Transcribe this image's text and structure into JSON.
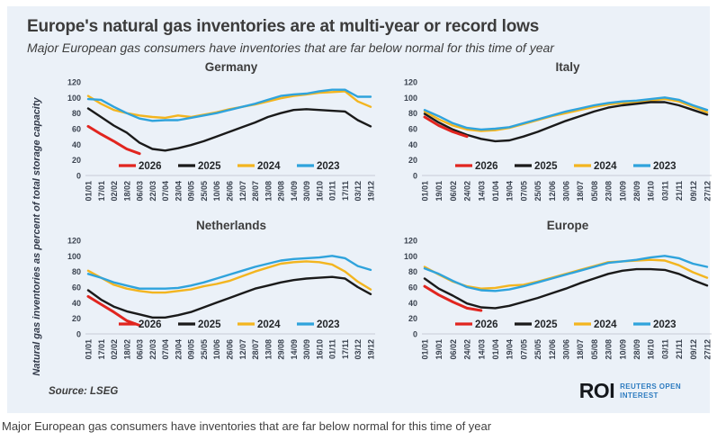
{
  "header": {
    "title": "Europe's natural gas inventories are at multi-year or record lows",
    "subtitle": "Major European gas consumers have inventories that are far below normal for this time of year"
  },
  "ylabel": "Natural gas inventories as percent of total storage capacity",
  "footer": {
    "source_text": "Source:  LSEG",
    "logo_text": "ROI",
    "logo_line1": "REUTERS OPEN",
    "logo_line2": "INTEREST"
  },
  "caption": "Major European gas consumers have inventories that are far below normal for this time of year",
  "colors": {
    "2026": "#e1251f",
    "2025": "#1a1a1a",
    "2024": "#f3b51f",
    "2023": "#2fa3dc",
    "card_background": "#ebf1f8",
    "axis_line": "#c7ccd6",
    "logo_blue": "#2e7cc0"
  },
  "legend_order": [
    "2026",
    "2025",
    "2024",
    "2023"
  ],
  "chart_data": [
    {
      "type": "line",
      "title": "Germany",
      "ylim": [
        0,
        120
      ],
      "yticks": [
        0,
        20,
        40,
        60,
        80,
        100,
        120
      ],
      "legend_position": "bottom-center-inside",
      "grid": false,
      "categories": [
        "01/01",
        "17/01",
        "02/02",
        "18/02",
        "06/03",
        "22/03",
        "07/04",
        "23/04",
        "09/05",
        "25/05",
        "10/06",
        "26/06",
        "12/07",
        "28/07",
        "13/08",
        "29/08",
        "14/09",
        "30/09",
        "16/10",
        "01/11",
        "17/11",
        "03/12",
        "19/12"
      ],
      "series": [
        {
          "name": "2026",
          "values": [
            63,
            53,
            44,
            34,
            28
          ]
        },
        {
          "name": "2025",
          "values": [
            86,
            75,
            64,
            55,
            42,
            34,
            32,
            35,
            39,
            44,
            50,
            56,
            62,
            68,
            75,
            80,
            84,
            85,
            84,
            83,
            82,
            71,
            63
          ]
        },
        {
          "name": "2024",
          "values": [
            102,
            92,
            84,
            80,
            77,
            75,
            74,
            77,
            75,
            78,
            81,
            85,
            88,
            91,
            95,
            99,
            102,
            104,
            106,
            107,
            108,
            95,
            88
          ]
        },
        {
          "name": "2023",
          "values": [
            98,
            97,
            88,
            80,
            73,
            70,
            71,
            71,
            74,
            77,
            80,
            84,
            88,
            92,
            97,
            102,
            104,
            105,
            108,
            110,
            110,
            101,
            101
          ]
        }
      ]
    },
    {
      "type": "line",
      "title": "Italy",
      "ylim": [
        0,
        120
      ],
      "yticks": [
        0,
        20,
        40,
        60,
        80,
        100,
        120
      ],
      "legend_position": "bottom-center-inside",
      "grid": false,
      "categories": [
        "01/01",
        "19/01",
        "06/02",
        "24/02",
        "14/03",
        "01/04",
        "19/04",
        "07/05",
        "25/05",
        "12/06",
        "30/06",
        "18/07",
        "05/08",
        "23/08",
        "10/09",
        "28/09",
        "16/10",
        "03/11",
        "21/11",
        "09/12",
        "27/12"
      ],
      "series": [
        {
          "name": "2026",
          "values": [
            75,
            64,
            56,
            50
          ]
        },
        {
          "name": "2025",
          "values": [
            79,
            68,
            59,
            52,
            47,
            44,
            45,
            50,
            56,
            63,
            70,
            76,
            82,
            87,
            90,
            92,
            94,
            94,
            90,
            84,
            78
          ]
        },
        {
          "name": "2024",
          "values": [
            82,
            72,
            64,
            59,
            57,
            58,
            61,
            66,
            71,
            76,
            80,
            84,
            88,
            91,
            93,
            94,
            96,
            98,
            95,
            88,
            81
          ]
        },
        {
          "name": "2023",
          "values": [
            84,
            76,
            67,
            61,
            59,
            60,
            62,
            67,
            72,
            77,
            82,
            86,
            90,
            93,
            95,
            96,
            98,
            100,
            97,
            90,
            84
          ]
        }
      ]
    },
    {
      "type": "line",
      "title": "Netherlands",
      "ylim": [
        0,
        120
      ],
      "yticks": [
        0,
        20,
        40,
        60,
        80,
        100,
        120
      ],
      "legend_position": "bottom-center-inside",
      "grid": false,
      "categories": [
        "01/01",
        "17/01",
        "02/02",
        "18/02",
        "06/03",
        "22/03",
        "07/04",
        "23/04",
        "09/05",
        "25/05",
        "10/06",
        "26/06",
        "12/07",
        "28/07",
        "13/08",
        "29/08",
        "14/09",
        "30/09",
        "16/10",
        "01/11",
        "17/11",
        "03/12",
        "19/12"
      ],
      "series": [
        {
          "name": "2026",
          "values": [
            48,
            38,
            28,
            17,
            11
          ]
        },
        {
          "name": "2025",
          "values": [
            56,
            44,
            35,
            29,
            25,
            21,
            21,
            24,
            28,
            34,
            40,
            46,
            52,
            58,
            62,
            66,
            69,
            71,
            72,
            73,
            71,
            60,
            51
          ]
        },
        {
          "name": "2024",
          "values": [
            81,
            72,
            63,
            58,
            55,
            53,
            53,
            55,
            57,
            61,
            64,
            68,
            74,
            80,
            85,
            90,
            92,
            93,
            92,
            89,
            80,
            67,
            57
          ]
        },
        {
          "name": "2023",
          "values": [
            77,
            72,
            66,
            62,
            58,
            58,
            58,
            59,
            62,
            66,
            71,
            76,
            81,
            86,
            90,
            94,
            96,
            97,
            98,
            100,
            97,
            87,
            82
          ]
        }
      ]
    },
    {
      "type": "line",
      "title": "Europe",
      "ylim": [
        0,
        120
      ],
      "yticks": [
        0,
        20,
        40,
        60,
        80,
        100,
        120
      ],
      "legend_position": "bottom-center-inside",
      "grid": false,
      "categories": [
        "01/01",
        "19/01",
        "06/02",
        "24/02",
        "14/03",
        "01/04",
        "19/04",
        "07/05",
        "25/05",
        "12/06",
        "30/06",
        "18/07",
        "05/08",
        "23/08",
        "10/09",
        "28/09",
        "16/10",
        "03/11",
        "21/11",
        "09/12",
        "27/12"
      ],
      "series": [
        {
          "name": "2026",
          "values": [
            61,
            50,
            41,
            33,
            30
          ]
        },
        {
          "name": "2025",
          "values": [
            71,
            58,
            49,
            39,
            34,
            33,
            36,
            41,
            46,
            52,
            58,
            65,
            71,
            77,
            81,
            83,
            83,
            82,
            77,
            69,
            62
          ]
        },
        {
          "name": "2024",
          "values": [
            86,
            76,
            67,
            61,
            58,
            59,
            62,
            63,
            67,
            72,
            77,
            82,
            87,
            92,
            93,
            94,
            95,
            94,
            88,
            79,
            72
          ]
        },
        {
          "name": "2023",
          "values": [
            84,
            77,
            68,
            60,
            56,
            55,
            57,
            61,
            66,
            71,
            76,
            81,
            86,
            91,
            93,
            95,
            98,
            100,
            97,
            90,
            86
          ]
        }
      ]
    }
  ]
}
